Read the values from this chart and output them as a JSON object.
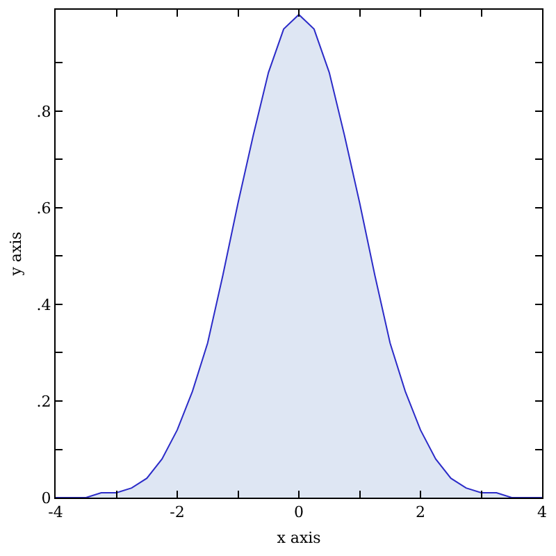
{
  "chart_data": {
    "type": "area",
    "xlabel": "x axis",
    "ylabel": "y axis",
    "x": [
      -4,
      -3.75,
      -3.5,
      -3.25,
      -3,
      -2.75,
      -2.5,
      -2.25,
      -2,
      -1.75,
      -1.5,
      -1.25,
      -1,
      -0.75,
      -0.5,
      -0.25,
      0,
      0.25,
      0.5,
      0.75,
      1,
      1.25,
      1.5,
      1.75,
      2,
      2.25,
      2.5,
      2.75,
      3,
      3.25,
      3.5,
      3.75,
      4
    ],
    "series": [
      {
        "color": "#2b2bc8",
        "values": [
          0,
          0,
          0,
          0.01,
          0.01,
          0.02,
          0.04,
          0.08,
          0.14,
          0.22,
          0.32,
          0.46,
          0.61,
          0.75,
          0.88,
          0.97,
          1,
          0.97,
          0.88,
          0.75,
          0.61,
          0.46,
          0.32,
          0.22,
          0.14,
          0.08,
          0.04,
          0.02,
          0.01,
          0.01,
          0,
          0,
          0
        ]
      }
    ],
    "xlim": [
      -4,
      4
    ],
    "ylim": [
      0,
      1.01
    ],
    "xticks": [
      -4,
      {
        "value": -3,
        "label": null
      },
      -2,
      {
        "value": -1,
        "label": null
      },
      0,
      {
        "value": 1,
        "label": null
      },
      2,
      {
        "value": 3,
        "label": null
      },
      4
    ],
    "yticks": [
      0,
      {
        "value": 0.1,
        "label": null
      },
      {
        "value": 0.2,
        "label": ".2"
      },
      {
        "value": 0.3,
        "label": null
      },
      {
        "value": 0.4,
        "label": ".4"
      },
      {
        "value": 0.5,
        "label": null
      },
      {
        "value": 0.6,
        "label": ".6"
      },
      {
        "value": 0.7,
        "label": null
      },
      {
        "value": 0.8,
        "label": ".8"
      },
      {
        "value": 0.9,
        "label": null
      }
    ],
    "legend": false
  }
}
